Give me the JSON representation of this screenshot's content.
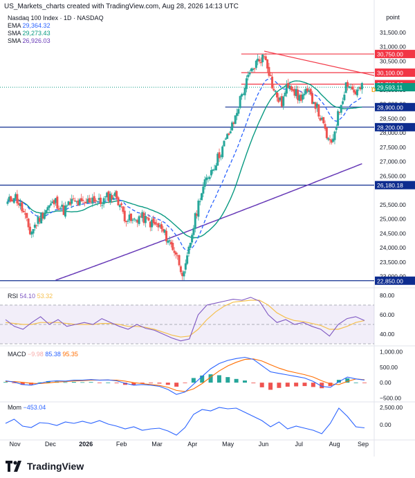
{
  "header": {
    "credit": "US_Markets_charts created with TradingView.com, Aug 28, 2026 14:13 UTC"
  },
  "legend": {
    "title": "Nasdaq 100 Index · 1D · NASDAQ",
    "ema_label": "EMA",
    "ema_value": "29,364.32",
    "sma1_label": "SMA",
    "sma1_value": "29,273.43",
    "sma2_label": "SMA",
    "sma2_value": "26,926.03"
  },
  "rsi_legend": {
    "label": "RSI",
    "value1": "54.10",
    "value2": "53.32"
  },
  "macd_legend": {
    "label": "MACD",
    "value1": "−9.98",
    "value2": "85.38",
    "value3": "95.35"
  },
  "mom_legend": {
    "label": "Mom",
    "value1": "−453.04"
  },
  "footer": {
    "brand": "TradingView"
  },
  "colors": {
    "up": "#26a69a",
    "down": "#ef5350",
    "ema": "#2962ff",
    "sma1": "#089981",
    "sma2": "#673ab7",
    "hline": "#0d2c8f",
    "resist": "#f23645",
    "price": "#089981",
    "rsi": "#7e57c2",
    "rsima": "#f5c04e",
    "macd": "#2962ff",
    "signal": "#ff6d00",
    "mom": "#2962ff"
  },
  "chart_data": [
    {
      "type": "candlestick",
      "name": "Nasdaq 100 Index",
      "ylabel": "point",
      "ylim": [
        22700,
        32150
      ],
      "x_ticks": [
        "Nov",
        "Dec",
        "2026",
        "Feb",
        "Mar",
        "Apr",
        "May",
        "Jun",
        "Jul",
        "Aug",
        "Sep"
      ],
      "y_ticks": [
        "31,500.00",
        "31,000.00",
        "30,500.00",
        "29,500.00",
        "29,000.00",
        "28,500.00",
        "28,000.00",
        "27,500.00",
        "27,000.00",
        "26,500.00",
        "25,500.00",
        "25,000.00",
        "24,500.00",
        "24,000.00",
        "23,500.00",
        "23,000.00"
      ],
      "horizontal_levels": [
        {
          "value": 30750,
          "label": "30,750.00",
          "kind": "resistance"
        },
        {
          "value": 30100,
          "label": "30,100.00",
          "kind": "resistance"
        },
        {
          "value": 29700,
          "label": "29,700.00",
          "kind": "resistance"
        },
        {
          "value": 28900,
          "label": "28,900.00",
          "kind": "support"
        },
        {
          "value": 28200,
          "label": "28,200.00",
          "kind": "support"
        },
        {
          "value": 26180.18,
          "label": "26,180.18",
          "kind": "support"
        },
        {
          "value": 22850,
          "label": "22,850.00",
          "kind": "support"
        }
      ],
      "last_price": {
        "value": 29593.11,
        "label": "29,593.11"
      },
      "marker": "D",
      "trendline": {
        "from": [
          "Jun",
          30850
        ],
        "to": [
          "Sep",
          30000
        ]
      },
      "close_path": [
        [
          "Oct 28",
          25550
        ],
        [
          "Nov 3",
          25850
        ],
        [
          "Nov 10",
          25300
        ],
        [
          "Nov 17",
          24500
        ],
        [
          "Nov 24",
          25000
        ],
        [
          "Dec 1",
          25400
        ],
        [
          "Dec 8",
          25600
        ],
        [
          "Dec 15",
          25300
        ],
        [
          "Dec 22",
          25600
        ],
        [
          "Jan 2",
          25500
        ],
        [
          "Jan 9",
          25750
        ],
        [
          "Jan 16",
          25550
        ],
        [
          "Jan 23",
          25800
        ],
        [
          "Jan 30",
          25800
        ],
        [
          "Feb 6",
          25100
        ],
        [
          "Feb 13",
          24900
        ],
        [
          "Feb 20",
          25100
        ],
        [
          "Feb 27",
          24900
        ],
        [
          "Mar 6",
          24700
        ],
        [
          "Mar 13",
          24300
        ],
        [
          "Mar 20",
          23800
        ],
        [
          "Mar 27",
          23000
        ],
        [
          "Apr 3",
          24500
        ],
        [
          "Apr 10",
          25800
        ],
        [
          "Apr 17",
          26500
        ],
        [
          "Apr 24",
          27000
        ],
        [
          "May 1",
          27700
        ],
        [
          "May 8",
          28300
        ],
        [
          "May 15",
          29300
        ],
        [
          "May 22",
          30000
        ],
        [
          "May 29",
          30500
        ],
        [
          "Jun 5",
          30700
        ],
        [
          "Jun 12",
          29500
        ],
        [
          "Jun 19",
          29000
        ],
        [
          "Jun 26",
          29800
        ],
        [
          "Jul 3",
          29200
        ],
        [
          "Jul 10",
          29400
        ],
        [
          "Jul 17",
          29100
        ],
        [
          "Jul 24",
          28300
        ],
        [
          "Jul 31",
          27500
        ],
        [
          "Aug 7",
          28700
        ],
        [
          "Aug 14",
          29800
        ],
        [
          "Aug 21",
          29400
        ],
        [
          "Aug 28",
          29590
        ]
      ]
    },
    {
      "type": "line",
      "name": "RSI",
      "ylim": [
        30,
        85
      ],
      "y_ticks": [
        "80.00",
        "60.00",
        "40.00"
      ],
      "band": [
        30,
        70
      ],
      "series": [
        {
          "name": "RSI",
          "values": [
            55,
            48,
            45,
            52,
            58,
            50,
            55,
            48,
            50,
            52,
            50,
            56,
            52,
            48,
            45,
            50,
            46,
            44,
            40,
            36,
            33,
            35,
            60,
            70,
            72,
            74,
            76,
            75,
            78,
            74,
            60,
            52,
            55,
            50,
            52,
            48,
            45,
            38,
            50,
            56,
            58,
            54
          ]
        },
        {
          "name": "RSI MA",
          "values": [
            52,
            51,
            50,
            50,
            52,
            52,
            52,
            51,
            50,
            50,
            50,
            51,
            51,
            50,
            48,
            48,
            47,
            45,
            42,
            39,
            37,
            38,
            45,
            55,
            63,
            69,
            73,
            74,
            75,
            75,
            70,
            62,
            57,
            54,
            53,
            51,
            49,
            45,
            45,
            48,
            52,
            54
          ]
        }
      ]
    },
    {
      "type": "bar+line",
      "name": "MACD",
      "ylim": [
        -600,
        1100
      ],
      "y_ticks": [
        "1,000.00",
        "500.00",
        "0.00",
        "−500.00"
      ],
      "series": [
        {
          "name": "MACD",
          "values": [
            60,
            20,
            -60,
            -80,
            -20,
            40,
            60,
            50,
            80,
            80,
            100,
            80,
            90,
            60,
            -20,
            -80,
            -60,
            -80,
            -120,
            -220,
            -380,
            -300,
            -50,
            200,
            450,
            620,
            720,
            780,
            820,
            750,
            550,
            350,
            300,
            250,
            200,
            150,
            40,
            -120,
            -150,
            30,
            180,
            120,
            85
          ]
        },
        {
          "name": "Signal",
          "values": [
            40,
            35,
            10,
            -20,
            -30,
            -10,
            20,
            35,
            55,
            65,
            80,
            85,
            85,
            80,
            50,
            0,
            -30,
            -60,
            -90,
            -150,
            -250,
            -290,
            -200,
            -30,
            180,
            380,
            540,
            660,
            750,
            770,
            700,
            580,
            470,
            380,
            320,
            260,
            180,
            60,
            -40,
            -60,
            40,
            120,
            95
          ]
        },
        {
          "name": "Histogram",
          "values": [
            20,
            -15,
            -70,
            -60,
            10,
            50,
            40,
            15,
            25,
            15,
            20,
            -5,
            5,
            -20,
            -70,
            -80,
            -30,
            -20,
            -30,
            -70,
            -130,
            -10,
            150,
            230,
            270,
            240,
            180,
            120,
            70,
            -20,
            -150,
            -230,
            -170,
            -130,
            -120,
            -110,
            -140,
            -180,
            -110,
            90,
            140,
            0,
            -10
          ]
        }
      ]
    },
    {
      "type": "line",
      "name": "Momentum",
      "ylim": [
        -1800,
        3200
      ],
      "y_ticks": [
        "2,500.00",
        "0.00"
      ],
      "series": [
        {
          "name": "Mom",
          "values": [
            200,
            800,
            -200,
            -400,
            300,
            200,
            -100,
            400,
            200,
            500,
            200,
            600,
            100,
            -200,
            -600,
            -300,
            -800,
            -600,
            -500,
            -900,
            -1500,
            -400,
            1500,
            2200,
            2000,
            2500,
            2300,
            2400,
            1800,
            1200,
            600,
            -300,
            400,
            -600,
            -200,
            -500,
            -800,
            -1300,
            200,
            2400,
            1200,
            -300,
            -450
          ]
        }
      ]
    }
  ]
}
